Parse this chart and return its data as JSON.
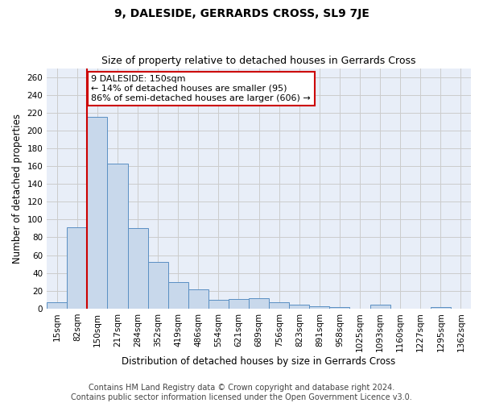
{
  "title": "9, DALESIDE, GERRARDS CROSS, SL9 7JE",
  "subtitle": "Size of property relative to detached houses in Gerrards Cross",
  "xlabel": "Distribution of detached houses by size in Gerrards Cross",
  "ylabel": "Number of detached properties",
  "footer_line1": "Contains HM Land Registry data © Crown copyright and database right 2024.",
  "footer_line2": "Contains public sector information licensed under the Open Government Licence v3.0.",
  "annotation_line1": "9 DALESIDE: 150sqm",
  "annotation_line2": "← 14% of detached houses are smaller (95)",
  "annotation_line3": "86% of semi-detached houses are larger (606) →",
  "categories": [
    "15sqm",
    "82sqm",
    "150sqm",
    "217sqm",
    "284sqm",
    "352sqm",
    "419sqm",
    "486sqm",
    "554sqm",
    "621sqm",
    "689sqm",
    "756sqm",
    "823sqm",
    "891sqm",
    "958sqm",
    "1025sqm",
    "1093sqm",
    "1160sqm",
    "1227sqm",
    "1295sqm",
    "1362sqm"
  ],
  "bar_heights": [
    7,
    91,
    215,
    163,
    90,
    52,
    30,
    22,
    10,
    11,
    12,
    7,
    4,
    3,
    2,
    0,
    4,
    0,
    0,
    2,
    0
  ],
  "bar_color": "#c8d8eb",
  "bar_edgecolor": "#5a8fc3",
  "vline_index": 2,
  "vline_color": "#cc0000",
  "annotation_box_edgecolor": "#cc0000",
  "annotation_box_facecolor": "white",
  "ylim": [
    0,
    270
  ],
  "yticks": [
    0,
    20,
    40,
    60,
    80,
    100,
    120,
    140,
    160,
    180,
    200,
    220,
    240,
    260
  ],
  "grid_color": "#cccccc",
  "bg_color": "#e8eef8",
  "title_fontsize": 10,
  "subtitle_fontsize": 9,
  "axis_label_fontsize": 8.5,
  "tick_fontsize": 7.5,
  "annotation_fontsize": 8,
  "footer_fontsize": 7
}
